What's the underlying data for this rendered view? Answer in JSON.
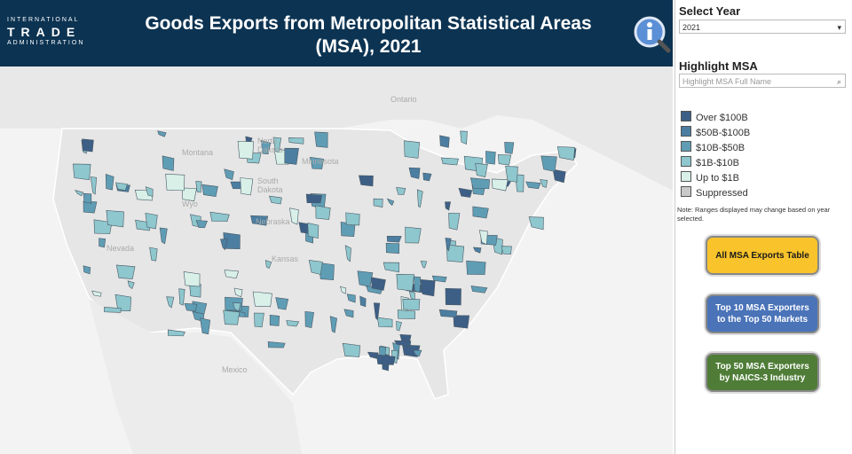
{
  "header": {
    "logo": [
      "INTERNATIONAL",
      "TRADE",
      "ADMINISTRATION"
    ],
    "title": "Goods Exports from Metropolitan Statistical Areas (MSA), 2021"
  },
  "map": {
    "labels": [
      "Ontario",
      "North",
      "Dakota",
      "Montana",
      "Minnesota",
      "South",
      "Dakota",
      "Wyo",
      "Nebraska",
      "Nevada",
      "Kansas",
      "Mexico"
    ]
  },
  "sidebar": {
    "select_year": {
      "label": "Select Year",
      "value": "2021"
    },
    "highlight": {
      "label": "Highlight MSA",
      "placeholder": "Highlight MSA Full Name"
    },
    "legend": [
      {
        "name": "Over $100B",
        "color": "#3d5f86"
      },
      {
        "name": "$50B-$100B",
        "color": "#4b7ea1"
      },
      {
        "name": "$10B-$50B",
        "color": "#5f9db5"
      },
      {
        "name": "$1B-$10B",
        "color": "#8ec7cd"
      },
      {
        "name": "Up to $1B",
        "color": "#d8f0e8"
      },
      {
        "name": "Suppressed",
        "color": "#c9c9c9"
      }
    ],
    "note": "Note: Ranges displayed may change based on year selected.",
    "buttons": [
      {
        "label": "All MSA Exports Table",
        "color": "#f8c32b",
        "text_color": "#1a1a1a"
      },
      {
        "label": "Top 10 MSA Exporters to the Top 50 Markets",
        "color": "#4a73b8",
        "text_color": "#ffffff"
      },
      {
        "label": "Top 50 MSA Exporters by NAICS-3 Industry",
        "color": "#4f7d37",
        "text_color": "#ffffff"
      }
    ]
  }
}
